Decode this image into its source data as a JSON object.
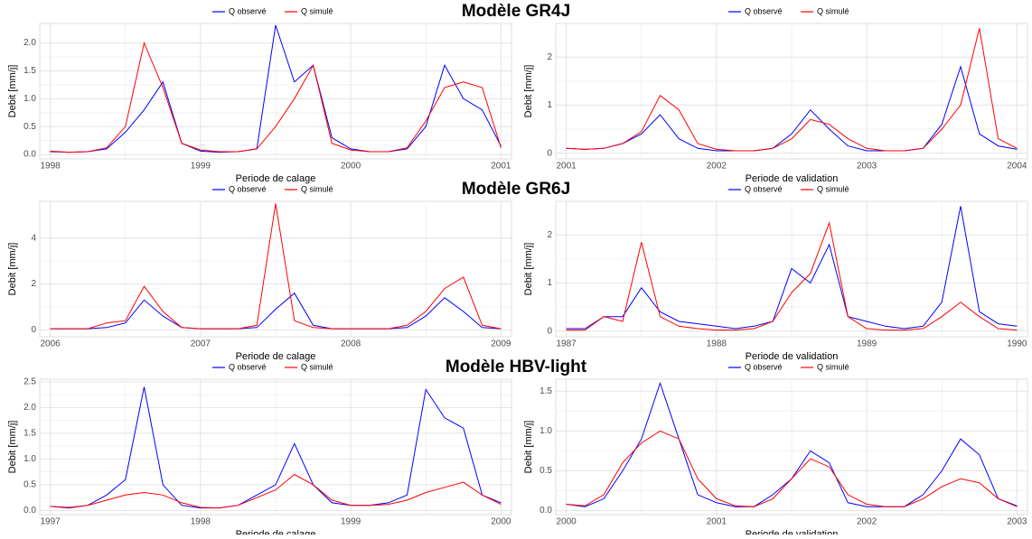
{
  "chart_data": [
    {
      "type": "line",
      "title": "Modèle GR4J",
      "legend": "top",
      "grid": true,
      "xlabel": "Periode de calage",
      "ylabel": "Debit [mm/j]",
      "x": [
        1998,
        1998.125,
        1998.25,
        1998.375,
        1998.5,
        1998.625,
        1998.75,
        1998.875,
        1999,
        1999.125,
        1999.25,
        1999.375,
        1999.5,
        1999.625,
        1999.75,
        1999.875,
        2000,
        2000.125,
        2000.25,
        2000.375,
        2000.5,
        2000.625,
        2000.75,
        2000.875,
        2001
      ],
      "xlim": [
        1997.93,
        2001.07
      ],
      "xticks": [
        1998,
        1999,
        2000,
        2001
      ],
      "ylim": [
        -0.08,
        2.35
      ],
      "yticks": [
        {
          "value": 0,
          "label": "0.0"
        },
        {
          "value": 0.5,
          "label": "0.5"
        },
        {
          "value": 1,
          "label": "1.0"
        },
        {
          "value": 1.5,
          "label": "1.5"
        },
        {
          "value": 2,
          "label": "2.0"
        }
      ],
      "series": [
        {
          "name": "Q observé",
          "color": "#0000ff",
          "values": [
            0.05,
            0.04,
            0.05,
            0.1,
            0.4,
            0.8,
            1.3,
            0.2,
            0.06,
            0.04,
            0.05,
            0.1,
            2.32,
            1.3,
            1.6,
            0.3,
            0.1,
            0.05,
            0.05,
            0.1,
            0.5,
            1.6,
            1.0,
            0.8,
            0.15
          ]
        },
        {
          "name": "Q simulé",
          "color": "#ff0000",
          "values": [
            0.06,
            0.04,
            0.05,
            0.12,
            0.5,
            2.0,
            1.2,
            0.2,
            0.08,
            0.05,
            0.05,
            0.1,
            0.5,
            1.0,
            1.6,
            0.2,
            0.08,
            0.05,
            0.05,
            0.12,
            0.6,
            1.2,
            1.3,
            1.2,
            0.12
          ]
        }
      ]
    },
    {
      "type": "line",
      "legend": "top",
      "grid": true,
      "xlabel": "Periode de validation",
      "ylabel": "Debit [mm/j]",
      "x": [
        2001,
        2001.125,
        2001.25,
        2001.375,
        2001.5,
        2001.625,
        2001.75,
        2001.875,
        2002,
        2002.125,
        2002.25,
        2002.375,
        2002.5,
        2002.625,
        2002.75,
        2002.875,
        2003,
        2003.125,
        2003.25,
        2003.375,
        2003.5,
        2003.625,
        2003.75,
        2003.875,
        2004
      ],
      "xlim": [
        2000.93,
        2004.07
      ],
      "xticks": [
        2001,
        2002,
        2003,
        2004
      ],
      "ylim": [
        -0.12,
        2.7
      ],
      "yticks": [
        0,
        1,
        2
      ],
      "series": [
        {
          "name": "Q observé",
          "color": "#0000ff",
          "values": [
            0.1,
            0.08,
            0.1,
            0.2,
            0.4,
            0.8,
            0.3,
            0.1,
            0.05,
            0.05,
            0.05,
            0.1,
            0.4,
            0.9,
            0.5,
            0.15,
            0.05,
            0.05,
            0.05,
            0.1,
            0.6,
            1.8,
            0.4,
            0.15,
            0.08
          ]
        },
        {
          "name": "Q simulé",
          "color": "#ff0000",
          "values": [
            0.1,
            0.08,
            0.1,
            0.2,
            0.45,
            1.2,
            0.9,
            0.2,
            0.08,
            0.05,
            0.05,
            0.1,
            0.3,
            0.7,
            0.6,
            0.3,
            0.1,
            0.05,
            0.05,
            0.1,
            0.5,
            1.0,
            2.6,
            0.3,
            0.1
          ]
        }
      ]
    },
    {
      "type": "line",
      "title": "Modèle GR6J",
      "legend": "top",
      "grid": true,
      "xlabel": "Periode de calage",
      "ylabel": "Debit [mm/j]",
      "x": [
        2006,
        2006.125,
        2006.25,
        2006.375,
        2006.5,
        2006.625,
        2006.75,
        2006.875,
        2007,
        2007.125,
        2007.25,
        2007.375,
        2007.5,
        2007.625,
        2007.75,
        2007.875,
        2008,
        2008.125,
        2008.25,
        2008.375,
        2008.5,
        2008.625,
        2008.75,
        2008.875,
        2009
      ],
      "xlim": [
        2005.93,
        2009.07
      ],
      "xticks": [
        2006,
        2007,
        2008,
        2009
      ],
      "ylim": [
        -0.3,
        5.6
      ],
      "yticks": [
        0,
        2,
        4
      ],
      "series": [
        {
          "name": "Q observé",
          "color": "#0000ff",
          "values": [
            0.05,
            0.05,
            0.05,
            0.1,
            0.3,
            1.3,
            0.6,
            0.1,
            0.05,
            0.05,
            0.05,
            0.1,
            0.9,
            1.6,
            0.2,
            0.05,
            0.05,
            0.05,
            0.05,
            0.1,
            0.6,
            1.4,
            0.8,
            0.1,
            0.05
          ]
        },
        {
          "name": "Q simulé",
          "color": "#ff0000",
          "values": [
            0.05,
            0.05,
            0.05,
            0.3,
            0.4,
            1.9,
            0.8,
            0.1,
            0.05,
            0.05,
            0.05,
            0.2,
            5.5,
            0.4,
            0.1,
            0.05,
            0.05,
            0.05,
            0.05,
            0.2,
            0.8,
            1.8,
            2.3,
            0.2,
            0.05
          ]
        }
      ]
    },
    {
      "type": "line",
      "legend": "top",
      "grid": true,
      "xlabel": "Periode de validation",
      "ylabel": "Debit [mm/j]",
      "x": [
        1987,
        1987.125,
        1987.25,
        1987.375,
        1987.5,
        1987.625,
        1987.75,
        1987.875,
        1988,
        1988.125,
        1988.25,
        1988.375,
        1988.5,
        1988.625,
        1988.75,
        1988.875,
        1989,
        1989.125,
        1989.25,
        1989.375,
        1989.5,
        1989.625,
        1989.75,
        1989.875,
        1990
      ],
      "xlim": [
        1986.93,
        1990.07
      ],
      "xticks": [
        1987,
        1988,
        1989,
        1990
      ],
      "ylim": [
        -0.12,
        2.7
      ],
      "yticks": [
        0,
        1,
        2
      ],
      "series": [
        {
          "name": "Q observé",
          "color": "#0000ff",
          "values": [
            0.05,
            0.05,
            0.3,
            0.3,
            0.9,
            0.4,
            0.2,
            0.15,
            0.1,
            0.05,
            0.1,
            0.2,
            1.3,
            1.0,
            1.8,
            0.3,
            0.2,
            0.1,
            0.05,
            0.1,
            0.6,
            2.6,
            0.4,
            0.15,
            0.1
          ]
        },
        {
          "name": "Q simulé",
          "color": "#ff0000",
          "values": [
            0.02,
            0.02,
            0.3,
            0.2,
            1.85,
            0.3,
            0.1,
            0.05,
            0.02,
            0.02,
            0.05,
            0.2,
            0.8,
            1.2,
            2.25,
            0.3,
            0.05,
            0.02,
            0.02,
            0.05,
            0.3,
            0.6,
            0.3,
            0.05,
            0.02
          ]
        }
      ]
    },
    {
      "type": "line",
      "title": "Modèle HBV-light",
      "legend": "top",
      "grid": true,
      "xlabel": "Periode de calage",
      "ylabel": "Debit [mm/j]",
      "x": [
        1997,
        1997.125,
        1997.25,
        1997.375,
        1997.5,
        1997.625,
        1997.75,
        1997.875,
        1998,
        1998.125,
        1998.25,
        1998.375,
        1998.5,
        1998.625,
        1998.75,
        1998.875,
        1999,
        1999.125,
        1999.25,
        1999.375,
        1999.5,
        1999.625,
        1999.75,
        1999.875,
        2000
      ],
      "xlim": [
        1996.93,
        2000.07
      ],
      "xticks": [
        1997,
        1998,
        1999,
        2000
      ],
      "ylim": [
        -0.08,
        2.55
      ],
      "yticks": [
        {
          "value": 0,
          "label": "0.0"
        },
        {
          "value": 0.5,
          "label": "0.5"
        },
        {
          "value": 1,
          "label": "1.0"
        },
        {
          "value": 1.5,
          "label": "1.5"
        },
        {
          "value": 2,
          "label": "2.0"
        },
        {
          "value": 2.5,
          "label": "2.5"
        }
      ],
      "series": [
        {
          "name": "Q observé",
          "color": "#0000ff",
          "values": [
            0.08,
            0.05,
            0.1,
            0.3,
            0.6,
            2.4,
            0.5,
            0.1,
            0.05,
            0.05,
            0.1,
            0.3,
            0.5,
            1.3,
            0.5,
            0.15,
            0.1,
            0.1,
            0.15,
            0.3,
            2.35,
            1.8,
            1.6,
            0.3,
            0.15
          ]
        },
        {
          "name": "Q simulé",
          "color": "#ff0000",
          "values": [
            0.08,
            0.06,
            0.1,
            0.2,
            0.3,
            0.35,
            0.3,
            0.15,
            0.06,
            0.05,
            0.1,
            0.25,
            0.4,
            0.7,
            0.5,
            0.2,
            0.1,
            0.1,
            0.12,
            0.2,
            0.35,
            0.45,
            0.55,
            0.3,
            0.12
          ]
        }
      ]
    },
    {
      "type": "line",
      "legend": "top",
      "grid": true,
      "xlabel": "Periode de validation",
      "ylabel": "Debit [mm/j]",
      "x": [
        2000,
        2000.125,
        2000.25,
        2000.375,
        2000.5,
        2000.625,
        2000.75,
        2000.875,
        2001,
        2001.125,
        2001.25,
        2001.375,
        2001.5,
        2001.625,
        2001.75,
        2001.875,
        2002,
        2002.125,
        2002.25,
        2002.375,
        2002.5,
        2002.625,
        2002.75,
        2002.875,
        2003
      ],
      "xlim": [
        1999.93,
        2003.07
      ],
      "xticks": [
        2000,
        2001,
        2002,
        2003
      ],
      "ylim": [
        -0.05,
        1.65
      ],
      "yticks": [
        {
          "value": 0,
          "label": "0.0"
        },
        {
          "value": 0.5,
          "label": "0.5"
        },
        {
          "value": 1,
          "label": "1.0"
        },
        {
          "value": 1.5,
          "label": "1.5"
        }
      ],
      "series": [
        {
          "name": "Q observé",
          "color": "#0000ff",
          "values": [
            0.08,
            0.05,
            0.15,
            0.5,
            0.9,
            1.6,
            0.9,
            0.2,
            0.1,
            0.05,
            0.05,
            0.2,
            0.4,
            0.75,
            0.6,
            0.1,
            0.05,
            0.05,
            0.05,
            0.2,
            0.5,
            0.9,
            0.7,
            0.15,
            0.06
          ]
        },
        {
          "name": "Q simulé",
          "color": "#ff0000",
          "values": [
            0.08,
            0.06,
            0.2,
            0.6,
            0.85,
            1.0,
            0.9,
            0.4,
            0.15,
            0.06,
            0.05,
            0.15,
            0.4,
            0.65,
            0.55,
            0.2,
            0.08,
            0.05,
            0.05,
            0.15,
            0.3,
            0.4,
            0.35,
            0.15,
            0.05
          ]
        }
      ]
    }
  ]
}
